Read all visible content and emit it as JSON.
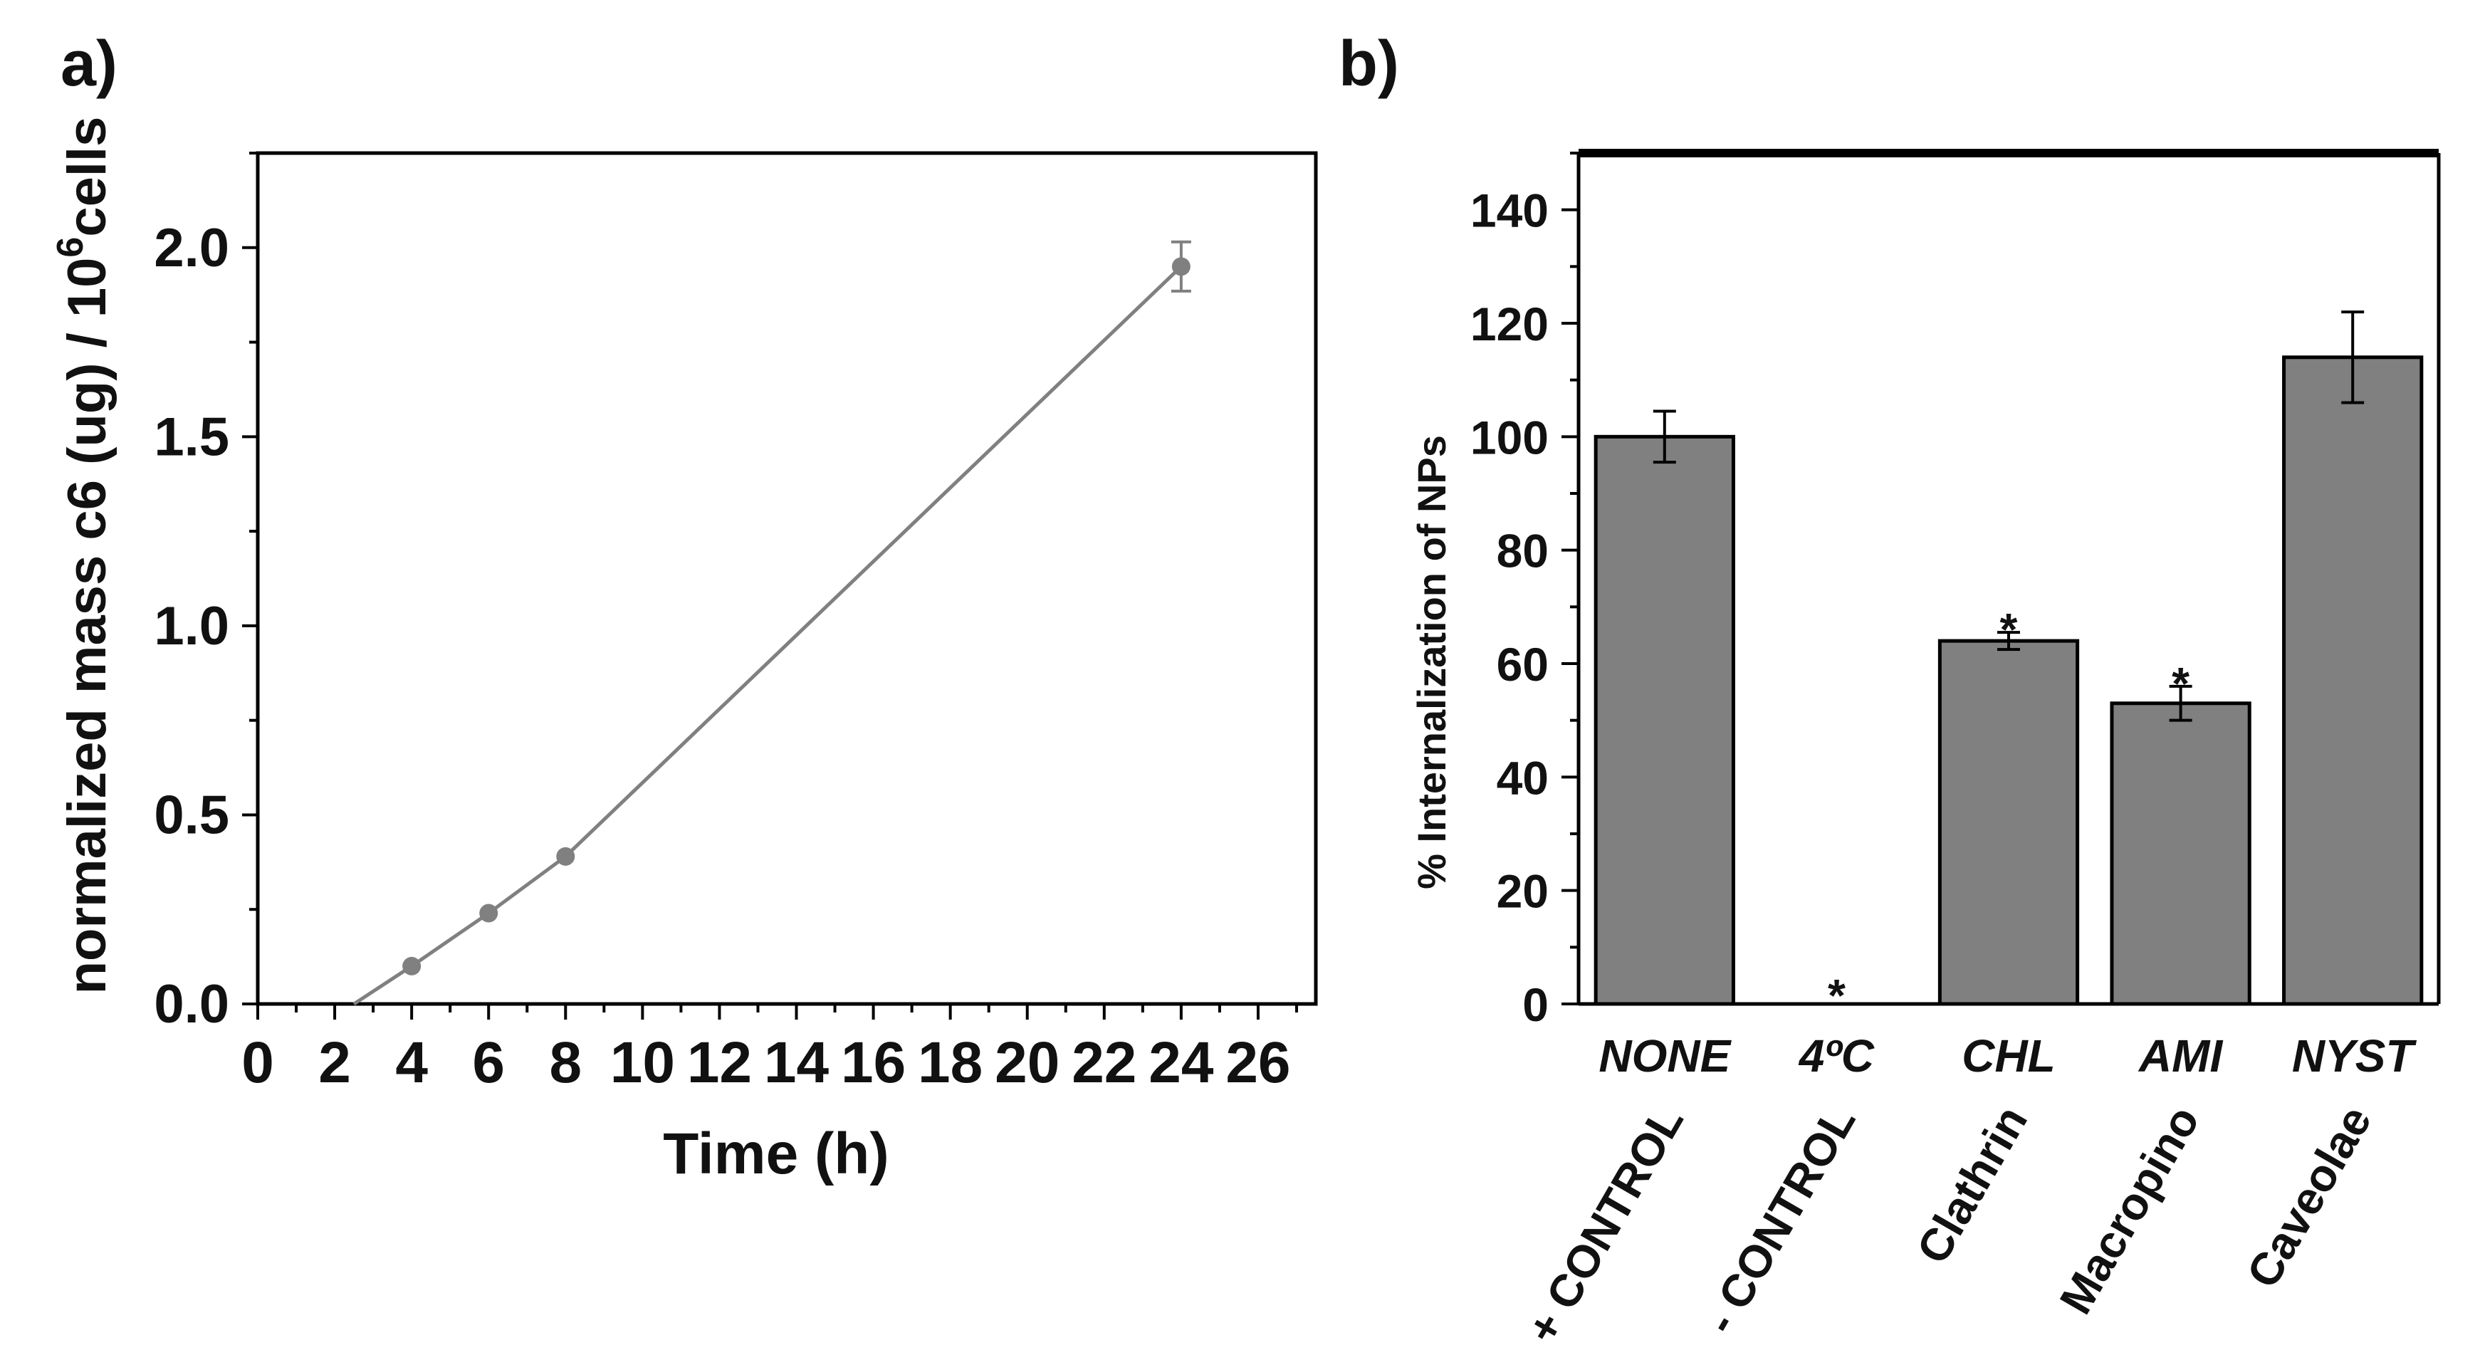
{
  "chart_data": [
    {
      "panel_label": "a)",
      "type": "line",
      "xlabel": "Time (h)",
      "ylabel_main": "normalized mass c6 (ug) / 10",
      "ylabel_sup": "6",
      "ylabel_tail": "cells",
      "xlim": [
        0,
        27.5
      ],
      "ylim": [
        0,
        2.25
      ],
      "xticks": [
        0,
        2,
        4,
        6,
        8,
        10,
        12,
        14,
        16,
        18,
        20,
        22,
        24,
        26
      ],
      "xtick_labels": [
        "0",
        "2",
        "4",
        "6",
        "8",
        "10",
        "12",
        "14",
        "16",
        "18",
        "20",
        "22",
        "24",
        "26"
      ],
      "yticks": [
        0,
        0.5,
        1.0,
        1.5,
        2.0
      ],
      "ytick_labels": [
        "0.0",
        "0.5",
        "1.0",
        "1.5",
        "2.0"
      ],
      "line_start": [
        2.5,
        0
      ],
      "points": [
        {
          "x": 4,
          "y": 0.1,
          "err": 0
        },
        {
          "x": 6,
          "y": 0.24,
          "err": 0
        },
        {
          "x": 8,
          "y": 0.39,
          "err": 0
        },
        {
          "x": 24,
          "y": 1.95,
          "err": 0.065
        }
      ],
      "color": "#808080"
    },
    {
      "panel_label": "b)",
      "type": "bar",
      "ylabel": "% Internalization of NPs",
      "ylim": [
        0,
        150
      ],
      "yticks": [
        0,
        20,
        40,
        60,
        80,
        100,
        120,
        140
      ],
      "ytick_labels": [
        "0",
        "20",
        "40",
        "60",
        "80",
        "100",
        "120",
        "140"
      ],
      "categories": [
        "NONE",
        "4ºC",
        "CHL",
        "AMI",
        "NYST"
      ],
      "pathways": [
        "+ CONTROL",
        "- CONTROL",
        "Clathrin",
        "Macropino",
        "Caveolae"
      ],
      "values": [
        100,
        0,
        64,
        53,
        114
      ],
      "errors": [
        4.5,
        0,
        1.5,
        3,
        8
      ],
      "significance": [
        "",
        "*",
        "*",
        "*",
        ""
      ],
      "color": "#808080"
    }
  ]
}
